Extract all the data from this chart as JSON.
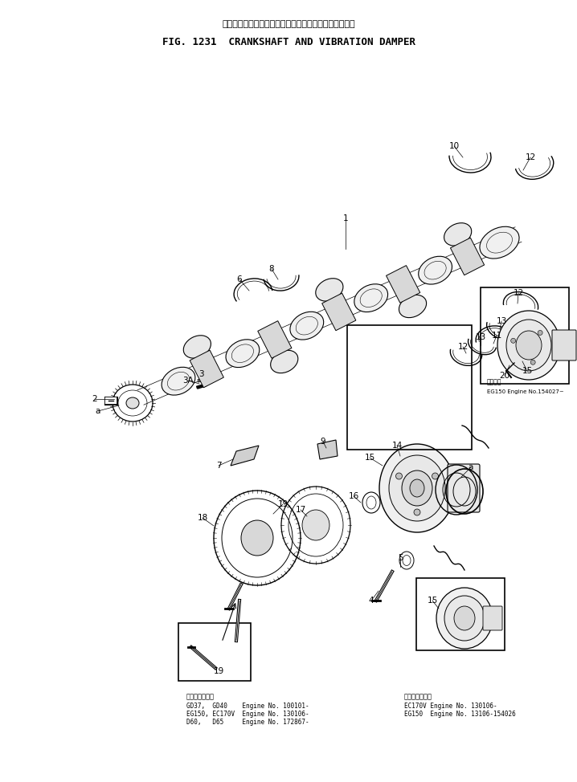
{
  "title_jp": "クランクシャフト　および　バイブレーション　ダンパ",
  "title_en": "FIG. 1231  CRANKSHAFT AND VIBRATION DAMPER",
  "bg_color": "#ffffff",
  "footer_left_title": "適　用　号　機",
  "footer_left_lines": [
    "GD37,  GD40    Engine No. 100101-",
    "EG150, EC170V  Engine No. 130106-",
    "D60,   D65     Engine No. 172867-"
  ],
  "footer_right_title": "適　用　号　機",
  "footer_right_lines": [
    "EC170V Engine No. 130106-",
    "EG150  Engine No. 13106-154026"
  ],
  "inset_top_right_note": "適用号機",
  "inset_top_right_engine": "EG150 Engine No.154027~"
}
